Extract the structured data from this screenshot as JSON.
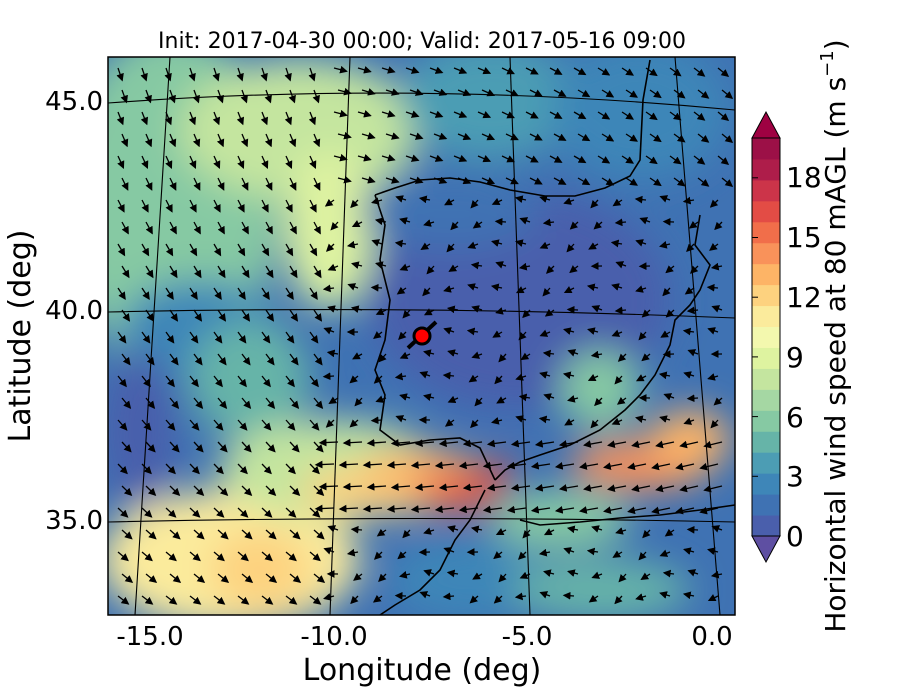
{
  "title": "Init: 2017-04-30 00:00; Valid: 2017-05-16 09:00",
  "xaxis": {
    "label": "Longitude (deg)",
    "ticks": [
      "-15.0",
      "-10.0",
      "-5.0",
      "0.0"
    ]
  },
  "yaxis": {
    "label": "Latitude (deg)",
    "ticks": [
      "45.0",
      "40.0",
      "35.0"
    ]
  },
  "colorbar": {
    "label": "Horizontal wind speed at 80 mAGL (m s",
    "label_sup": "−1",
    "label_close": ")",
    "ticks": [
      "0",
      "3",
      "6",
      "9",
      "12",
      "15",
      "18"
    ],
    "colors": [
      "#4a5fac",
      "#3f72b3",
      "#3e86b8",
      "#4c9db4",
      "#66b4a8",
      "#86c9a3",
      "#a5d7a3",
      "#c4e59f",
      "#def3a0",
      "#f3f8ae",
      "#fbeb9c",
      "#fdd27f",
      "#fdb466",
      "#f9925a",
      "#f16e4a",
      "#e34c45",
      "#cc3449",
      "#ae1d4a",
      "#9c1047"
    ],
    "min": 0,
    "max": 20,
    "extend": "both",
    "under_color": "#5e4fa2",
    "over_color": "#9e0142"
  },
  "map": {
    "lon_range": [
      -16,
      0.2
    ],
    "lat_range": [
      32.7,
      46.2
    ],
    "marker": {
      "lon": -7.6,
      "lat": 39.3,
      "color": "#ff0000"
    }
  }
}
